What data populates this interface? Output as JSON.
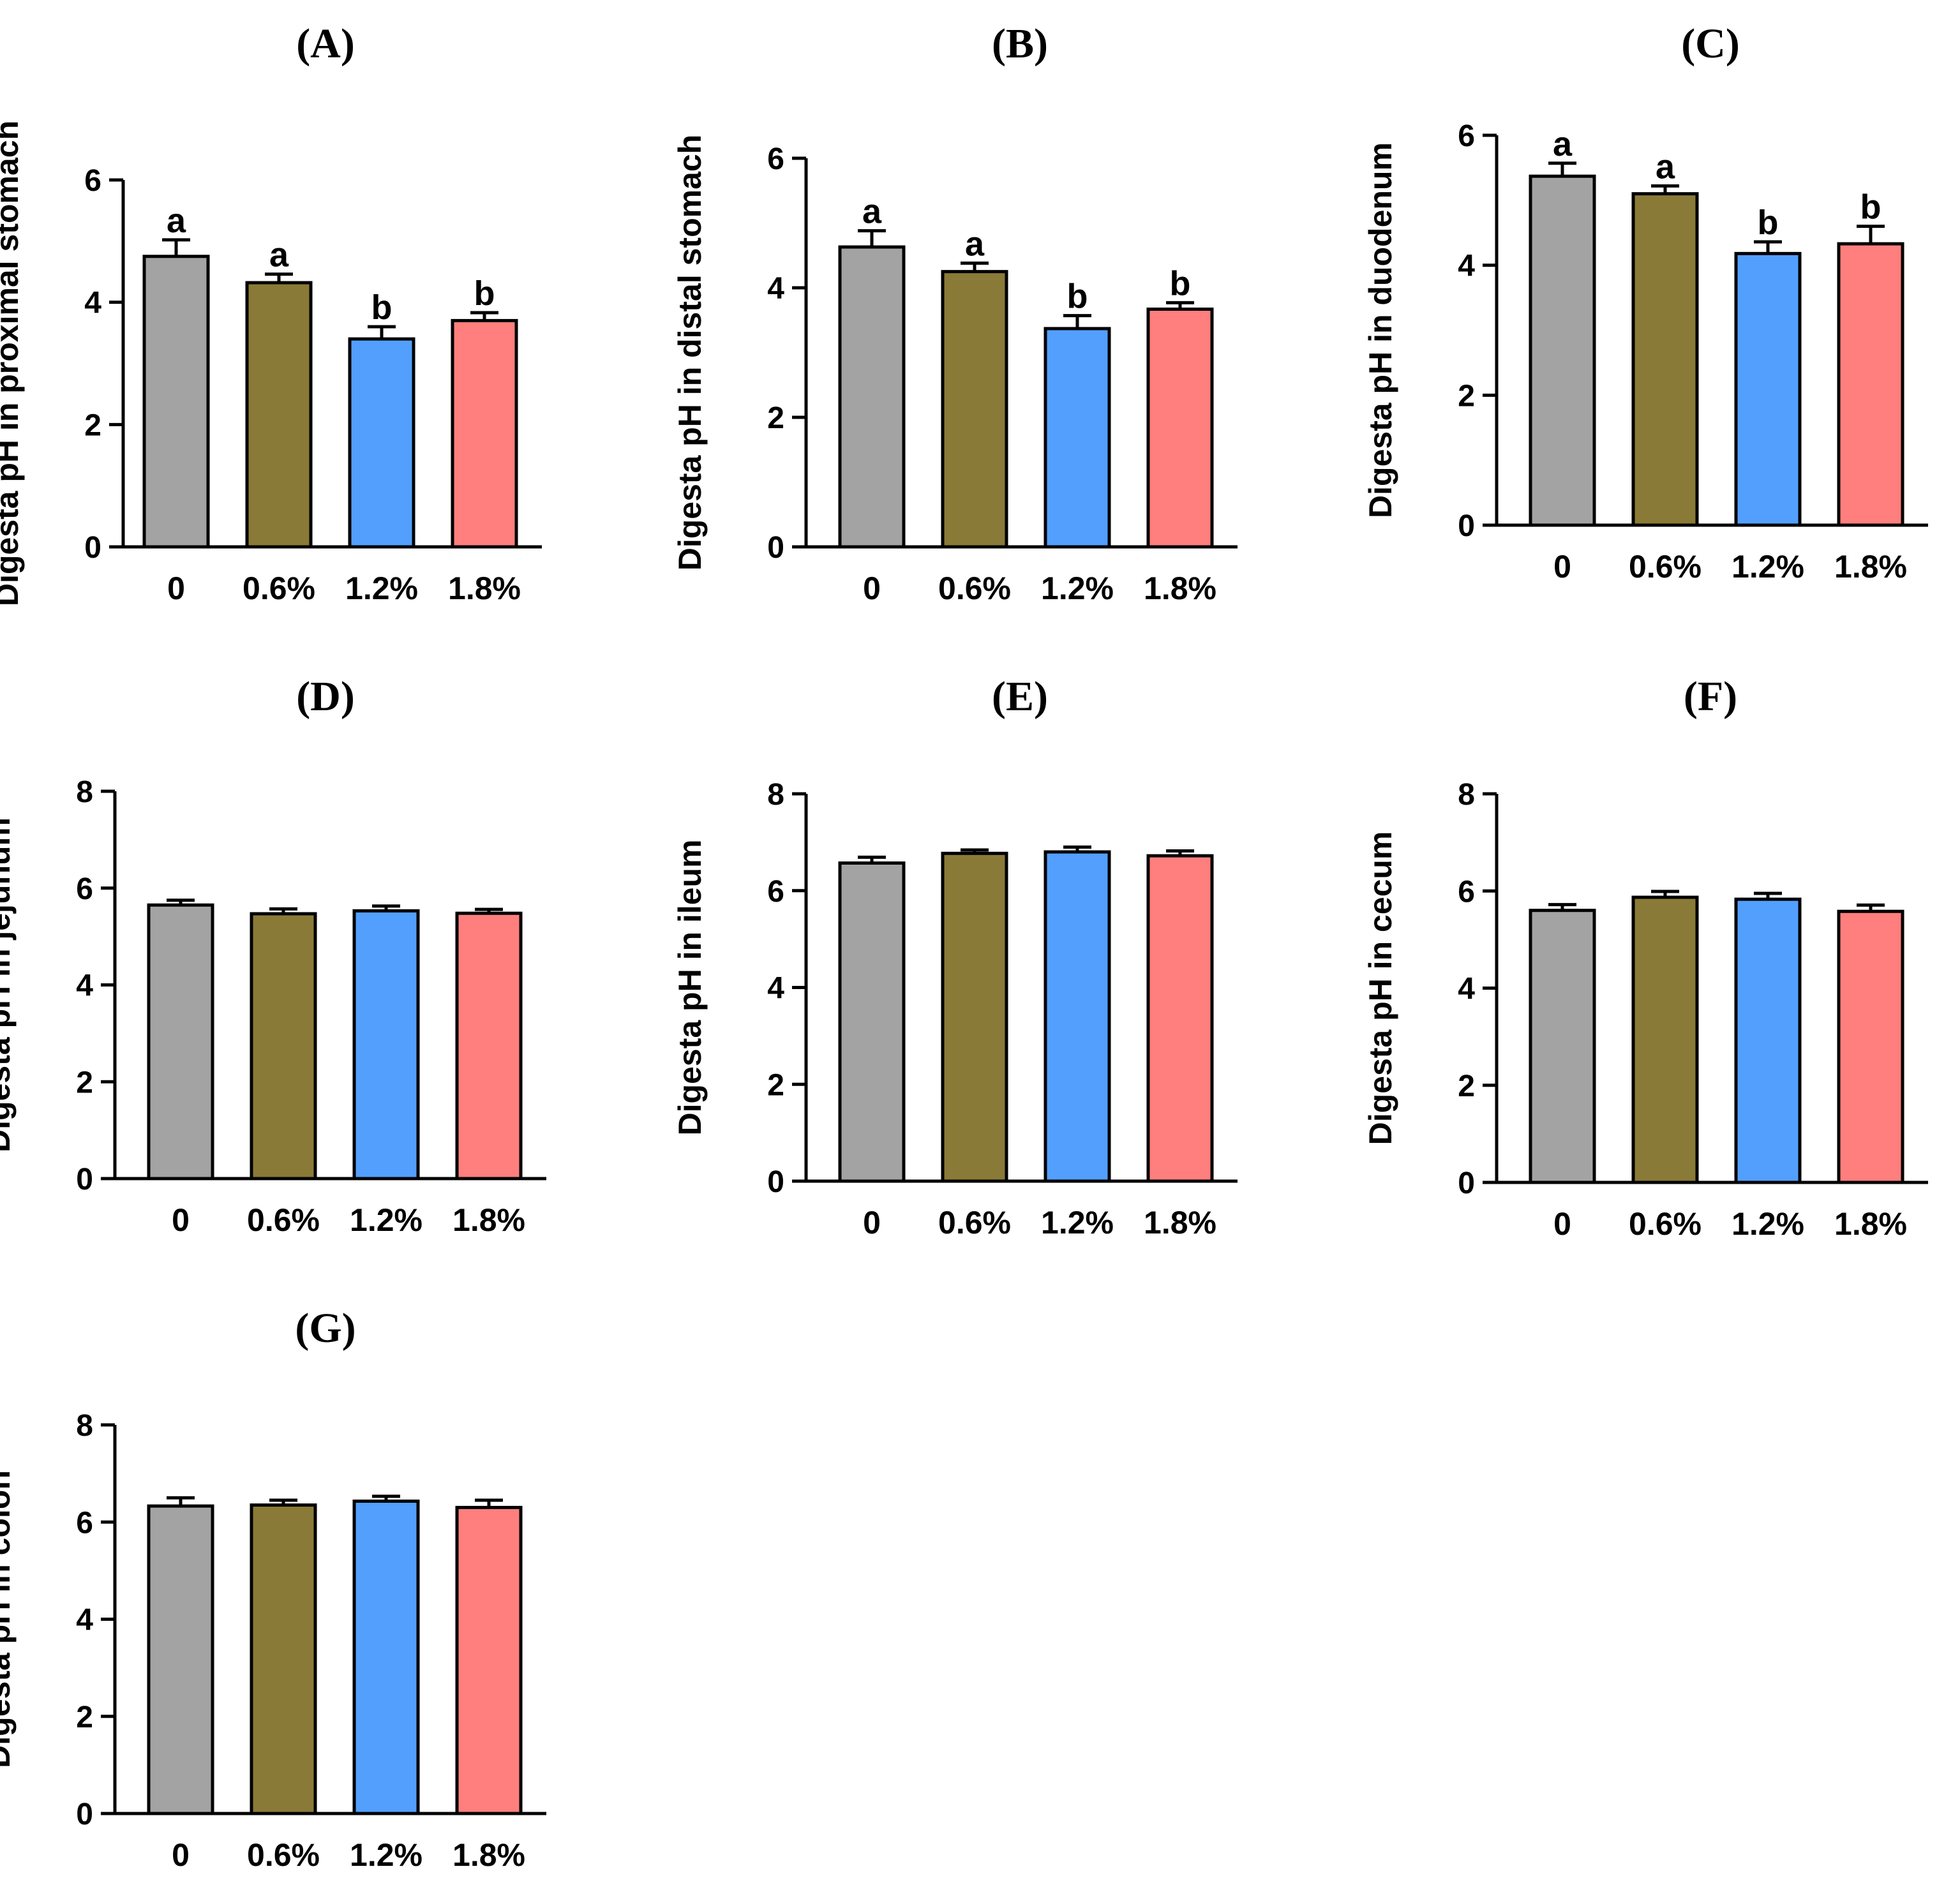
{
  "chart_data": [
    {
      "type": "bar",
      "title": "(A)",
      "ylabel": "Digesta pH in proximal stomach",
      "categories": [
        "0",
        "0.6%",
        "1.2%",
        "1.8%"
      ],
      "values": [
        4.75,
        4.32,
        3.4,
        3.7
      ],
      "errors": [
        0.27,
        0.14,
        0.2,
        0.13
      ],
      "significance": [
        "a",
        "a",
        "b",
        "b"
      ],
      "ylim": [
        0,
        6
      ],
      "yticks": [
        "0",
        "2",
        "4",
        "6"
      ]
    },
    {
      "type": "bar",
      "title": "(B)",
      "ylabel": "Digesta pH in distal stomach",
      "categories": [
        "0",
        "0.6%",
        "1.2%",
        "1.8%"
      ],
      "values": [
        4.63,
        4.25,
        3.37,
        3.67
      ],
      "errors": [
        0.25,
        0.13,
        0.2,
        0.1
      ],
      "significance": [
        "a",
        "a",
        "b",
        "b"
      ],
      "ylim": [
        0,
        6
      ],
      "yticks": [
        "0",
        "2",
        "4",
        "6"
      ]
    },
    {
      "type": "bar",
      "title": "(C)",
      "ylabel": "Digesta pH in duodenum",
      "categories": [
        "0",
        "0.6%",
        "1.2%",
        "1.8%"
      ],
      "values": [
        5.37,
        5.1,
        4.18,
        4.33
      ],
      "errors": [
        0.2,
        0.12,
        0.18,
        0.27
      ],
      "significance": [
        "a",
        "a",
        "b",
        "b"
      ],
      "ylim": [
        0,
        6
      ],
      "yticks": [
        "0",
        "2",
        "4",
        "6"
      ]
    },
    {
      "type": "bar",
      "title": "(D)",
      "ylabel": "Digesta pH in jejunum",
      "categories": [
        "0",
        "0.6%",
        "1.2%",
        "1.8%"
      ],
      "values": [
        5.65,
        5.47,
        5.53,
        5.48
      ],
      "errors": [
        0.1,
        0.1,
        0.1,
        0.08
      ],
      "significance": [
        "",
        "",
        "",
        ""
      ],
      "ylim": [
        0,
        8
      ],
      "yticks": [
        "0",
        "2",
        "4",
        "6",
        "8"
      ]
    },
    {
      "type": "bar",
      "title": "(E)",
      "ylabel": "Digesta pH in ileum",
      "categories": [
        "0",
        "0.6%",
        "1.2%",
        "1.8%"
      ],
      "values": [
        6.57,
        6.77,
        6.8,
        6.72
      ],
      "errors": [
        0.12,
        0.07,
        0.1,
        0.1
      ],
      "significance": [
        "",
        "",
        "",
        ""
      ],
      "ylim": [
        0,
        8
      ],
      "yticks": [
        "0",
        "2",
        "4",
        "6",
        "8"
      ]
    },
    {
      "type": "bar",
      "title": "(F)",
      "ylabel": "Digesta pH in cecum",
      "categories": [
        "0",
        "0.6%",
        "1.2%",
        "1.8%"
      ],
      "values": [
        5.6,
        5.87,
        5.83,
        5.58
      ],
      "errors": [
        0.12,
        0.12,
        0.12,
        0.13
      ],
      "significance": [
        "",
        "",
        "",
        ""
      ],
      "ylim": [
        0,
        8
      ],
      "yticks": [
        "0",
        "2",
        "4",
        "6",
        "8"
      ]
    },
    {
      "type": "bar",
      "title": "(G)",
      "ylabel": "Digesta pH in colon",
      "categories": [
        "0",
        "0.6%",
        "1.2%",
        "1.8%"
      ],
      "values": [
        6.33,
        6.35,
        6.43,
        6.3
      ],
      "errors": [
        0.17,
        0.1,
        0.1,
        0.15
      ],
      "significance": [
        "",
        "",
        "",
        ""
      ],
      "ylim": [
        0,
        8
      ],
      "yticks": [
        "0",
        "2",
        "4",
        "6",
        "8"
      ]
    }
  ],
  "colors": {
    "bars": [
      "#a3a3a3",
      "#8a7a37",
      "#539ffe",
      "#fe7f7d"
    ],
    "stroke": "#000000"
  }
}
